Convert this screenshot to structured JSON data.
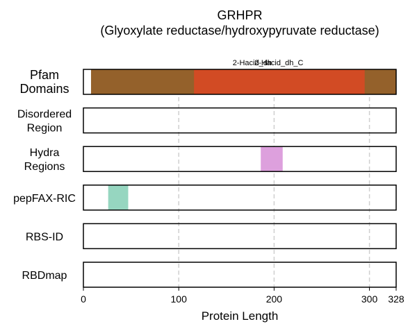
{
  "chart_data": {
    "type": "bar",
    "title": "GRHPR",
    "subtitle": "(Glyoxylate reductase/hydroxypyruvate reductase)",
    "xlabel": "Protein Length",
    "xlim": [
      0,
      328
    ],
    "xticks": [
      0,
      100,
      200,
      300,
      328
    ],
    "grid": "vertical dashed at 100, 200, 300",
    "tracks": [
      {
        "label": [
          "Pfam",
          "Domains"
        ],
        "segments": [
          {
            "start": 8,
            "end": 328,
            "color": "#94612b",
            "label": ""
          },
          {
            "start": 116,
            "end": 295,
            "color": "#d24b24",
            "label": "2-Hacid_dh_C"
          }
        ],
        "annotations": [
          {
            "text": "2-Hacid_dh",
            "x": 177
          },
          {
            "text": "2-Hacid_dh_C",
            "x": 205
          }
        ]
      },
      {
        "label": [
          "Disordered",
          "Region"
        ],
        "segments": []
      },
      {
        "label": [
          "Hydra",
          "Regions"
        ],
        "segments": [
          {
            "start": 186,
            "end": 209,
            "color": "#dda0dd"
          }
        ]
      },
      {
        "label": [
          "pepFAX-RIC"
        ],
        "segments": [
          {
            "start": 26,
            "end": 47,
            "color": "#96d6c0"
          }
        ]
      },
      {
        "label": [
          "RBS-ID"
        ],
        "segments": []
      },
      {
        "label": [
          "RBDmap"
        ],
        "segments": []
      }
    ]
  }
}
